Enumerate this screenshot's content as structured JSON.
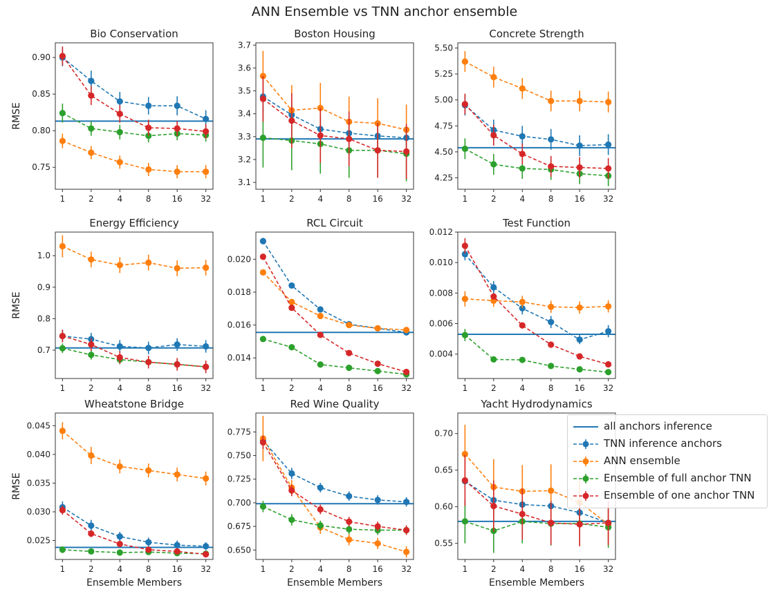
{
  "figure_title": "ANN Ensemble vs TNN anchor ensemble",
  "colors": {
    "tnn": "#1f77b4",
    "ann": "#ff7f0e",
    "full": "#2ca02c",
    "one": "#d62728",
    "anchor_line": "#1f77b4"
  },
  "legend": {
    "all_anchors": "all anchors inference",
    "tnn": "TNN inference anchors",
    "ann": "ANN ensemble",
    "full": "Ensemble of full anchor TNN",
    "one": "Ensemble of one anchor TNN"
  },
  "chart_data": [
    {
      "type": "line",
      "title": "Bio Conservation",
      "ylabel": "RMSE",
      "xlabel": "",
      "x": [
        1,
        2,
        4,
        8,
        16,
        32
      ],
      "xscale": "log2",
      "ylim": [
        0.72,
        0.92
      ],
      "yticks": [
        "0.75",
        "0.80",
        "0.85",
        "0.90"
      ],
      "hline": 0.813,
      "series": [
        {
          "key": "tnn",
          "values": [
            0.9,
            0.868,
            0.84,
            0.834,
            0.834,
            0.816
          ],
          "err": [
            0.012,
            0.014,
            0.013,
            0.012,
            0.013,
            0.012
          ]
        },
        {
          "key": "ann",
          "values": [
            0.786,
            0.77,
            0.757,
            0.747,
            0.744,
            0.744
          ],
          "err": [
            0.01,
            0.009,
            0.009,
            0.009,
            0.009,
            0.009
          ]
        },
        {
          "key": "full",
          "values": [
            0.824,
            0.803,
            0.798,
            0.793,
            0.796,
            0.794
          ],
          "err": [
            0.013,
            0.01,
            0.01,
            0.009,
            0.009,
            0.009
          ]
        },
        {
          "key": "one",
          "values": [
            0.902,
            0.848,
            0.823,
            0.804,
            0.803,
            0.799
          ],
          "err": [
            0.013,
            0.013,
            0.012,
            0.011,
            0.01,
            0.01
          ]
        }
      ]
    },
    {
      "type": "line",
      "title": "Boston Housing",
      "ylabel": "",
      "xlabel": "",
      "x": [
        1,
        2,
        4,
        8,
        16,
        32
      ],
      "xscale": "log2",
      "ylim": [
        3.07,
        3.71
      ],
      "yticks": [
        "3.1",
        "3.2",
        "3.3",
        "3.4",
        "3.5",
        "3.6",
        "3.7"
      ],
      "hline": 3.29,
      "series": [
        {
          "key": "tnn",
          "values": [
            3.475,
            3.395,
            3.333,
            3.315,
            3.303,
            3.295
          ],
          "err": [
            0.07,
            0.06,
            0.05,
            0.05,
            0.05,
            0.05
          ]
        },
        {
          "key": "ann",
          "values": [
            3.565,
            3.415,
            3.425,
            3.365,
            3.358,
            3.33
          ],
          "err": [
            0.11,
            0.11,
            0.11,
            0.11,
            0.11,
            0.11
          ]
        },
        {
          "key": "full",
          "values": [
            3.295,
            3.283,
            3.268,
            3.24,
            3.24,
            3.225
          ],
          "err": [
            0.13,
            0.13,
            0.13,
            0.12,
            0.12,
            0.12
          ]
        },
        {
          "key": "one",
          "values": [
            3.465,
            3.37,
            3.305,
            3.29,
            3.24,
            3.235
          ],
          "err": [
            0.1,
            0.12,
            0.12,
            0.12,
            0.12,
            0.12
          ]
        }
      ]
    },
    {
      "type": "line",
      "title": "Concrete Strength",
      "ylabel": "",
      "xlabel": "",
      "x": [
        1,
        2,
        4,
        8,
        16,
        32
      ],
      "xscale": "log2",
      "ylim": [
        4.14,
        5.55
      ],
      "yticks": [
        "4.25",
        "4.50",
        "4.75",
        "5.00",
        "5.25",
        "5.50"
      ],
      "hline": 4.54,
      "series": [
        {
          "key": "tnn",
          "values": [
            4.95,
            4.71,
            4.65,
            4.62,
            4.56,
            4.57
          ],
          "err": [
            0.1,
            0.1,
            0.1,
            0.1,
            0.1,
            0.1
          ]
        },
        {
          "key": "ann",
          "values": [
            5.37,
            5.22,
            5.11,
            4.99,
            4.99,
            4.98
          ],
          "err": [
            0.1,
            0.1,
            0.1,
            0.1,
            0.1,
            0.1
          ]
        },
        {
          "key": "full",
          "values": [
            4.53,
            4.38,
            4.34,
            4.33,
            4.29,
            4.27
          ],
          "err": [
            0.1,
            0.1,
            0.1,
            0.1,
            0.1,
            0.1
          ]
        },
        {
          "key": "one",
          "values": [
            4.96,
            4.66,
            4.48,
            4.36,
            4.35,
            4.34
          ],
          "err": [
            0.1,
            0.1,
            0.1,
            0.1,
            0.1,
            0.1
          ]
        }
      ]
    },
    {
      "type": "line",
      "title": "Energy Efficiency",
      "ylabel": "RMSE",
      "xlabel": "",
      "x": [
        1,
        2,
        4,
        8,
        16,
        32
      ],
      "xscale": "log2",
      "ylim": [
        0.61,
        1.075
      ],
      "yticks": [
        "0.7",
        "0.8",
        "0.9",
        "1.0"
      ],
      "hline": 0.707,
      "series": [
        {
          "key": "tnn",
          "values": [
            0.745,
            0.735,
            0.712,
            0.707,
            0.718,
            0.712
          ],
          "err": [
            0.02,
            0.02,
            0.02,
            0.02,
            0.02,
            0.02
          ]
        },
        {
          "key": "ann",
          "values": [
            1.03,
            0.988,
            0.97,
            0.978,
            0.96,
            0.962
          ],
          "err": [
            0.035,
            0.025,
            0.025,
            0.025,
            0.025,
            0.025
          ]
        },
        {
          "key": "full",
          "values": [
            0.706,
            0.685,
            0.67,
            0.662,
            0.655,
            0.647
          ],
          "err": [
            0.015,
            0.015,
            0.015,
            0.015,
            0.015,
            0.015
          ]
        },
        {
          "key": "one",
          "values": [
            0.745,
            0.718,
            0.677,
            0.662,
            0.655,
            0.647
          ],
          "err": [
            0.02,
            0.02,
            0.02,
            0.02,
            0.02,
            0.02
          ]
        }
      ]
    },
    {
      "type": "line",
      "title": "RCL Circuit",
      "ylabel": "",
      "xlabel": "",
      "x": [
        1,
        2,
        4,
        8,
        16,
        32
      ],
      "xscale": "log2",
      "ylim": [
        0.01275,
        0.02165
      ],
      "yticks": [
        "0.014",
        "0.016",
        "0.018",
        "0.020"
      ],
      "hline": 0.01555,
      "series": [
        {
          "key": "tnn",
          "values": [
            0.0211,
            0.0184,
            0.01695,
            0.01605,
            0.0158,
            0.01555
          ],
          "err": [
            0.0002,
            0.00015,
            0.00015,
            0.0001,
            0.0001,
            0.0001
          ]
        },
        {
          "key": "ann",
          "values": [
            0.0192,
            0.0174,
            0.01655,
            0.016,
            0.0158,
            0.0157
          ],
          "err": [
            0.0001,
            0.0001,
            0.0001,
            0.0001,
            0.0001,
            0.0001
          ]
        },
        {
          "key": "full",
          "values": [
            0.01515,
            0.01465,
            0.0136,
            0.0134,
            0.0132,
            0.013
          ],
          "err": [
            0.0001,
            0.0001,
            0.0001,
            0.0001,
            0.0001,
            0.0001
          ]
        },
        {
          "key": "one",
          "values": [
            0.02015,
            0.01705,
            0.0154,
            0.0143,
            0.01365,
            0.01315
          ],
          "err": [
            0.0001,
            0.0001,
            0.0001,
            0.0001,
            0.0001,
            0.0001
          ]
        }
      ]
    },
    {
      "type": "line",
      "title": "Test Function",
      "ylabel": "",
      "xlabel": "",
      "x": [
        1,
        2,
        4,
        8,
        16,
        32
      ],
      "xscale": "log2",
      "ylim": [
        0.0024,
        0.012
      ],
      "yticks": [
        "0.004",
        "0.006",
        "0.008",
        "0.010",
        "0.012"
      ],
      "hline": 0.0053,
      "series": [
        {
          "key": "tnn",
          "values": [
            0.01055,
            0.00838,
            0.007,
            0.0061,
            0.00495,
            0.0055
          ],
          "err": [
            0.0004,
            0.0004,
            0.0004,
            0.0004,
            0.0003,
            0.0004
          ]
        },
        {
          "key": "ann",
          "values": [
            0.00762,
            0.0075,
            0.00742,
            0.0071,
            0.00705,
            0.00713
          ],
          "err": [
            0.0005,
            0.0004,
            0.0004,
            0.0004,
            0.0004,
            0.0004
          ]
        },
        {
          "key": "full",
          "values": [
            0.00525,
            0.00365,
            0.00362,
            0.00322,
            0.003,
            0.00282
          ],
          "err": [
            0.0004,
            0.0001,
            0.0001,
            0.0001,
            0.0001,
            0.0001
          ]
        },
        {
          "key": "one",
          "values": [
            0.0111,
            0.00778,
            0.00588,
            0.00462,
            0.00385,
            0.00333
          ],
          "err": [
            0.0005,
            0.0002,
            0.0002,
            0.0001,
            0.0001,
            0.0001
          ]
        }
      ]
    },
    {
      "type": "line",
      "title": "Wheatstone Bridge",
      "ylabel": "RMSE",
      "xlabel": "Ensemble Members",
      "x": [
        1,
        2,
        4,
        8,
        16,
        32
      ],
      "xscale": "log2",
      "ylim": [
        0.0217,
        0.0472
      ],
      "yticks": [
        "0.025",
        "0.030",
        "0.035",
        "0.040",
        "0.045"
      ],
      "hline": 0.0238,
      "series": [
        {
          "key": "tnn",
          "values": [
            0.0308,
            0.0276,
            0.0257,
            0.0247,
            0.0242,
            0.024
          ],
          "err": [
            0.001,
            0.001,
            0.0008,
            0.0008,
            0.0008,
            0.0007
          ]
        },
        {
          "key": "ann",
          "values": [
            0.0441,
            0.0398,
            0.0379,
            0.0372,
            0.0365,
            0.0358
          ],
          "err": [
            0.0015,
            0.0015,
            0.0012,
            0.0012,
            0.0012,
            0.0012
          ]
        },
        {
          "key": "full",
          "values": [
            0.0234,
            0.0231,
            0.0229,
            0.023,
            0.0228,
            0.0227
          ],
          "err": [
            0.0006,
            0.0005,
            0.0004,
            0.0004,
            0.0004,
            0.0004
          ]
        },
        {
          "key": "one",
          "values": [
            0.0303,
            0.0262,
            0.0244,
            0.0234,
            0.0231,
            0.0226
          ],
          "err": [
            0.0008,
            0.0006,
            0.0005,
            0.0005,
            0.0005,
            0.0005
          ]
        }
      ]
    },
    {
      "type": "line",
      "title": "Red Wine Quality",
      "ylabel": "",
      "xlabel": "Ensemble Members",
      "x": [
        1,
        2,
        4,
        8,
        16,
        32
      ],
      "xscale": "log2",
      "ylim": [
        0.64,
        0.795
      ],
      "yticks": [
        "0.650",
        "0.675",
        "0.700",
        "0.725",
        "0.750",
        "0.775"
      ],
      "hline": 0.699,
      "series": [
        {
          "key": "tnn",
          "values": [
            0.766,
            0.731,
            0.716,
            0.707,
            0.703,
            0.701
          ],
          "err": [
            0.007,
            0.006,
            0.005,
            0.005,
            0.005,
            0.005
          ]
        },
        {
          "key": "ann",
          "values": [
            0.768,
            0.716,
            0.674,
            0.661,
            0.657,
            0.648
          ],
          "err": [
            0.024,
            0.008,
            0.007,
            0.006,
            0.006,
            0.006
          ]
        },
        {
          "key": "full",
          "values": [
            0.696,
            0.682,
            0.676,
            0.672,
            0.671,
            0.671
          ],
          "err": [
            0.006,
            0.006,
            0.005,
            0.005,
            0.005,
            0.005
          ]
        },
        {
          "key": "one",
          "values": [
            0.764,
            0.713,
            0.693,
            0.68,
            0.675,
            0.671
          ],
          "err": [
            0.007,
            0.006,
            0.005,
            0.005,
            0.005,
            0.005
          ]
        }
      ]
    },
    {
      "type": "line",
      "title": "Yacht Hydrodynamics",
      "ylabel": "",
      "xlabel": "Ensemble Members",
      "x": [
        1,
        2,
        4,
        8,
        16,
        32
      ],
      "xscale": "log2",
      "ylim": [
        0.528,
        0.728
      ],
      "yticks": [
        "0.55",
        "0.60",
        "0.65",
        "0.70"
      ],
      "hline": 0.58,
      "series": [
        {
          "key": "tnn",
          "values": [
            0.635,
            0.609,
            0.603,
            0.601,
            0.592,
            0.578
          ],
          "err": [
            0.005,
            0.004,
            0.004,
            0.004,
            0.004,
            0.004
          ]
        },
        {
          "key": "ann",
          "values": [
            0.672,
            0.627,
            0.621,
            0.622,
            0.606,
            0.576
          ],
          "err": [
            0.04,
            0.038,
            0.036,
            0.036,
            0.033,
            0.03
          ]
        },
        {
          "key": "full",
          "values": [
            0.58,
            0.567,
            0.58,
            0.577,
            0.577,
            0.572
          ],
          "err": [
            0.03,
            0.03,
            0.03,
            0.03,
            0.03,
            0.028
          ]
        },
        {
          "key": "one",
          "values": [
            0.636,
            0.601,
            0.59,
            0.578,
            0.576,
            0.578
          ],
          "err": [
            0.035,
            0.035,
            0.035,
            0.03,
            0.03,
            0.03
          ]
        }
      ]
    }
  ]
}
